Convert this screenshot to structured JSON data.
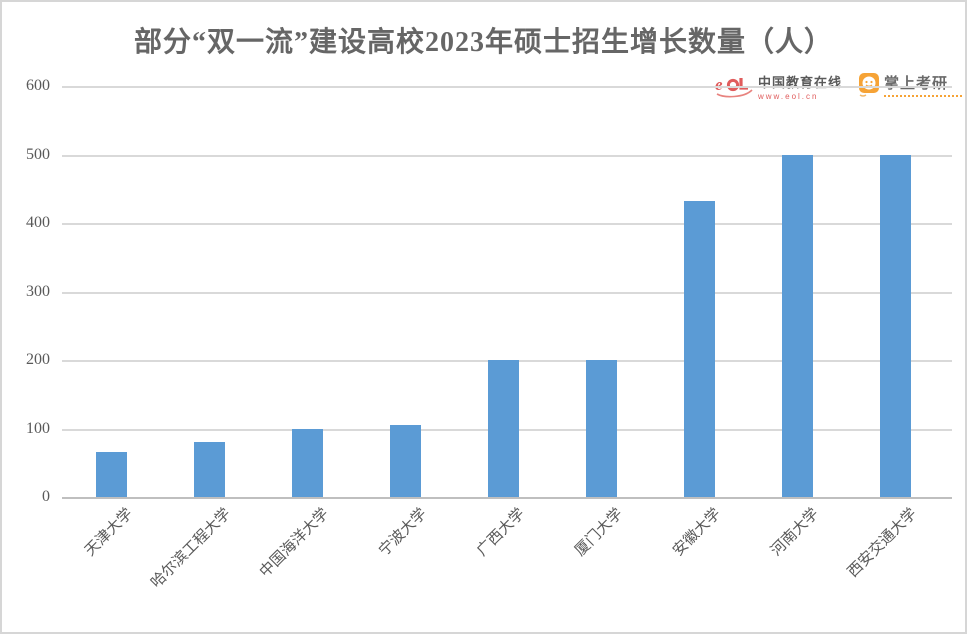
{
  "chart_data": {
    "type": "bar",
    "title": "部分“双一流”建设高校2023年硕士招生增长数量（人）",
    "categories": [
      "天津大学",
      "哈尔滨工程大学",
      "中国海洋大学",
      "宁波大学",
      "广西大学",
      "厦门大学",
      "安徽大学",
      "河南大学",
      "西安交通大学"
    ],
    "values": [
      65,
      80,
      100,
      105,
      200,
      200,
      432,
      500,
      500
    ],
    "xlabel": "",
    "ylabel": "",
    "ylim": [
      0,
      600
    ],
    "yticks": [
      600,
      500,
      400,
      300,
      200,
      100,
      0
    ],
    "grid": "horizontal",
    "legend": "none",
    "bar_color": "#5b9bd5"
  },
  "watermarks": {
    "eol": {
      "icon": "eol-logo-icon",
      "name": "中国教育在线",
      "url": "www.eol.cn"
    },
    "kaoyan": {
      "icon": "zhangshang-kaoyan-icon",
      "name": "掌上考研"
    }
  },
  "colors": {
    "bar": "#5b9bd5",
    "gridline": "#d9d9d9",
    "axis_line": "#bfbfbf",
    "title_text": "#666666",
    "tick_text": "#595959",
    "eol_red": "#e05c5c",
    "kaoyan_orange": "#f6a336",
    "border": "#d6d6d6"
  }
}
